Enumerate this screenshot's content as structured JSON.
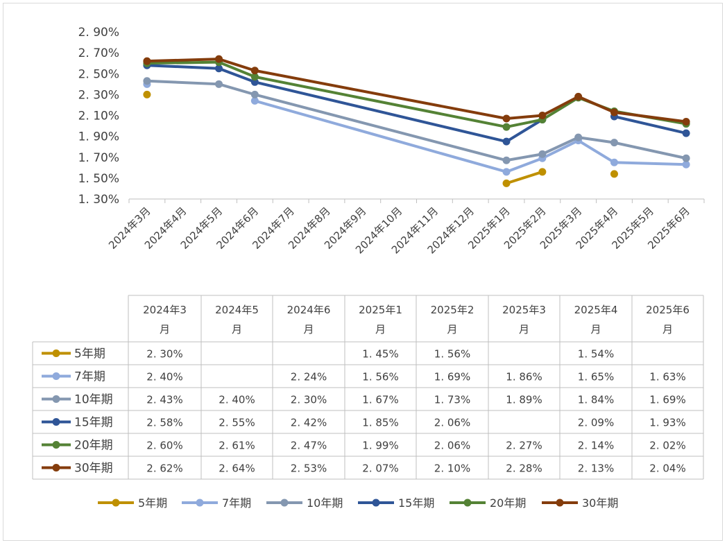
{
  "chart_data": {
    "type": "line",
    "title": "",
    "xlabel": "",
    "ylabel": "",
    "categories": [
      "2024年3月",
      "2024年4月",
      "2024年5月",
      "2024年6月",
      "2024年7月",
      "2024年8月",
      "2024年9月",
      "2024年10月",
      "2024年11月",
      "2024年12月",
      "2025年1月",
      "2025年2月",
      "2025年3月",
      "2025年4月",
      "2025年5月",
      "2025年6月"
    ],
    "y_ticks": [
      "1. 30%",
      "1. 50%",
      "1. 70%",
      "1. 90%",
      "2. 10%",
      "2. 30%",
      "2. 50%",
      "2. 70%",
      "2. 90%"
    ],
    "ylim": [
      1.3,
      2.9
    ],
    "series": [
      {
        "name": "5年期",
        "color": "#BF9000",
        "values": [
          2.3,
          null,
          null,
          null,
          null,
          null,
          null,
          null,
          null,
          null,
          1.45,
          1.56,
          null,
          1.54,
          null,
          null
        ]
      },
      {
        "name": "7年期",
        "color": "#8FAADC",
        "values": [
          2.4,
          null,
          null,
          2.24,
          null,
          null,
          null,
          null,
          null,
          null,
          1.56,
          1.69,
          1.86,
          1.65,
          null,
          1.63
        ]
      },
      {
        "name": "10年期",
        "color": "#8497B0",
        "values": [
          2.43,
          null,
          2.4,
          2.3,
          null,
          null,
          null,
          null,
          null,
          null,
          1.67,
          1.73,
          1.89,
          1.84,
          null,
          1.69
        ]
      },
      {
        "name": "15年期",
        "color": "#2F5597",
        "values": [
          2.58,
          null,
          2.55,
          2.42,
          null,
          null,
          null,
          null,
          null,
          null,
          1.85,
          2.06,
          null,
          2.09,
          null,
          1.93
        ]
      },
      {
        "name": "20年期",
        "color": "#548235",
        "values": [
          2.6,
          null,
          2.61,
          2.47,
          null,
          null,
          null,
          null,
          null,
          null,
          1.99,
          2.06,
          2.27,
          2.14,
          null,
          2.02
        ]
      },
      {
        "name": "30年期",
        "color": "#843C0C",
        "values": [
          2.62,
          null,
          2.64,
          2.53,
          null,
          null,
          null,
          null,
          null,
          null,
          2.07,
          2.1,
          2.28,
          2.13,
          null,
          2.04
        ]
      }
    ],
    "legend_position": "bottom"
  },
  "table": {
    "headers": [
      [
        "2024年3",
        "月"
      ],
      [
        "2024年5",
        "月"
      ],
      [
        "2024年6",
        "月"
      ],
      [
        "2025年1",
        "月"
      ],
      [
        "2025年2",
        "月"
      ],
      [
        "2025年3",
        "月"
      ],
      [
        "2025年4",
        "月"
      ],
      [
        "2025年6",
        "月"
      ]
    ],
    "rows": [
      {
        "name": "5年期",
        "cells": [
          "2. 30%",
          "",
          "",
          "1. 45%",
          "1. 56%",
          "",
          "1. 54%",
          ""
        ]
      },
      {
        "name": "7年期",
        "cells": [
          "2. 40%",
          "",
          "2. 24%",
          "1. 56%",
          "1. 69%",
          "1. 86%",
          "1. 65%",
          "1. 63%"
        ]
      },
      {
        "name": "10年期",
        "cells": [
          "2. 43%",
          "2. 40%",
          "2. 30%",
          "1. 67%",
          "1. 73%",
          "1. 89%",
          "1. 84%",
          "1. 69%"
        ]
      },
      {
        "name": "15年期",
        "cells": [
          "2. 58%",
          "2. 55%",
          "2. 42%",
          "1. 85%",
          "2. 06%",
          "",
          "2. 09%",
          "1. 93%"
        ]
      },
      {
        "name": "20年期",
        "cells": [
          "2. 60%",
          "2. 61%",
          "2. 47%",
          "1. 99%",
          "2. 06%",
          "2. 27%",
          "2. 14%",
          "2. 02%"
        ]
      },
      {
        "name": "30年期",
        "cells": [
          "2. 62%",
          "2. 64%",
          "2. 53%",
          "2. 07%",
          "2. 10%",
          "2. 28%",
          "2. 13%",
          "2. 04%"
        ]
      }
    ]
  }
}
